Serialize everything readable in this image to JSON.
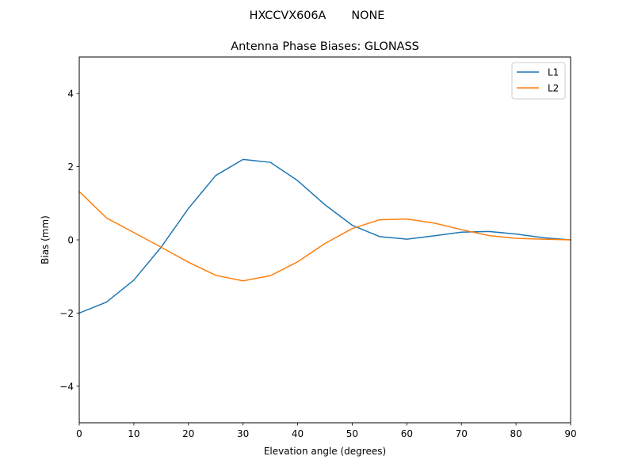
{
  "suptitle": "HXCCVX606A       NONE",
  "chart_data": {
    "type": "line",
    "title": "Antenna Phase Biases: GLONASS",
    "xlabel": "Elevation angle (degrees)",
    "ylabel": "Bias (mm)",
    "xlim": [
      0,
      90
    ],
    "ylim": [
      -5,
      5
    ],
    "xticks": [
      0,
      10,
      20,
      30,
      40,
      50,
      60,
      70,
      80,
      90
    ],
    "yticks": [
      -4,
      -2,
      0,
      2,
      4
    ],
    "ytick_labels": [
      "−4",
      "−2",
      "0",
      "2",
      "4"
    ],
    "grid": false,
    "legend_position": "top-right",
    "x": [
      0,
      5,
      10,
      15,
      20,
      25,
      30,
      35,
      40,
      45,
      50,
      55,
      60,
      65,
      70,
      75,
      80,
      85,
      90
    ],
    "series": [
      {
        "name": "L1",
        "color": "#1f77b4",
        "values": [
          -2.0,
          -1.7,
          -1.1,
          -0.2,
          0.86,
          1.76,
          2.2,
          2.12,
          1.62,
          0.96,
          0.4,
          0.09,
          0.02,
          0.11,
          0.21,
          0.23,
          0.16,
          0.06,
          0.0
        ]
      },
      {
        "name": "L2",
        "color": "#ff7f0e",
        "values": [
          1.32,
          0.6,
          0.2,
          -0.2,
          -0.61,
          -0.97,
          -1.12,
          -0.98,
          -0.6,
          -0.1,
          0.31,
          0.55,
          0.57,
          0.46,
          0.28,
          0.12,
          0.04,
          0.02,
          0.0
        ]
      }
    ]
  }
}
